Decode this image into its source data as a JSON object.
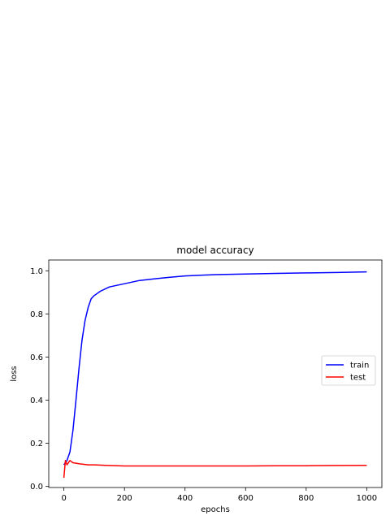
{
  "chart_data": {
    "type": "line",
    "title": "model accuracy",
    "xlabel": "epochs",
    "ylabel": "loss",
    "xlim": [
      -50,
      1050
    ],
    "ylim": [
      -0.005,
      1.05
    ],
    "xticks": [
      0,
      200,
      400,
      600,
      800,
      1000
    ],
    "xtick_labels": [
      "0",
      "200",
      "400",
      "600",
      "800",
      "1000"
    ],
    "yticks": [
      0.0,
      0.2,
      0.4,
      0.6,
      0.8,
      1.0
    ],
    "ytick_labels": [
      "0.0",
      "0.2",
      "0.4",
      "0.6",
      "0.8",
      "1.0"
    ],
    "grid": false,
    "legend_position": "center-right",
    "series": [
      {
        "name": "train",
        "color": "#0000ff",
        "x": [
          0,
          10,
          20,
          30,
          40,
          50,
          60,
          70,
          80,
          90,
          100,
          120,
          150,
          200,
          250,
          300,
          350,
          400,
          500,
          600,
          700,
          800,
          900,
          1000
        ],
        "y": [
          0.1,
          0.12,
          0.16,
          0.26,
          0.4,
          0.55,
          0.68,
          0.77,
          0.83,
          0.87,
          0.885,
          0.905,
          0.925,
          0.94,
          0.955,
          0.963,
          0.97,
          0.976,
          0.982,
          0.985,
          0.988,
          0.99,
          0.992,
          0.995
        ]
      },
      {
        "name": "test",
        "color": "#ff0000",
        "x": [
          0,
          5,
          10,
          20,
          30,
          50,
          80,
          100,
          150,
          200,
          300,
          400,
          500,
          600,
          700,
          800,
          900,
          1000
        ],
        "y": [
          0.04,
          0.12,
          0.1,
          0.12,
          0.11,
          0.105,
          0.1,
          0.1,
          0.097,
          0.095,
          0.095,
          0.095,
          0.095,
          0.095,
          0.096,
          0.096,
          0.097,
          0.098
        ]
      }
    ]
  }
}
